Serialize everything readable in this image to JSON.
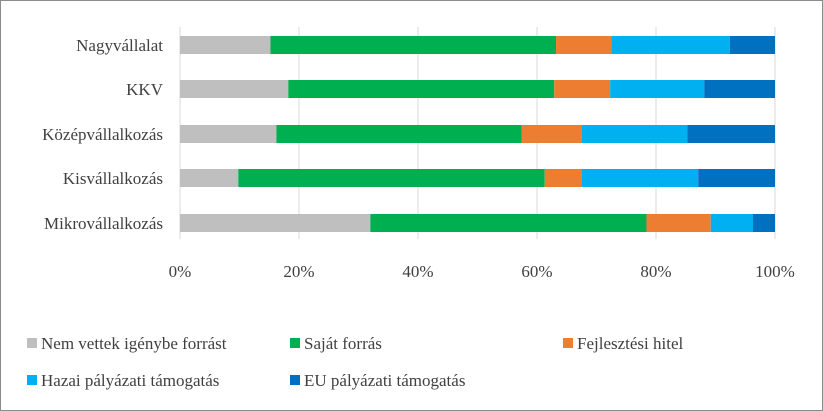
{
  "chart_data": {
    "type": "bar",
    "orientation": "horizontal",
    "stacked": "percent",
    "categories": [
      "Nagyvállalat",
      "KKV",
      "Középvállalkozás",
      "Kisvállalkozás",
      "Mikrovállalkozás"
    ],
    "xlim": [
      0,
      100
    ],
    "x_ticks": [
      "0%",
      "20%",
      "40%",
      "60%",
      "80%",
      "100%"
    ],
    "grid": true,
    "legend_position": "bottom",
    "series": [
      {
        "name": "Nem vettek igénybe forrást",
        "color": "#bfbfbf",
        "values": [
          15.2,
          18.2,
          16.2,
          9.8,
          32.0
        ]
      },
      {
        "name": "Saját forrás",
        "color": "#00b050",
        "values": [
          48.0,
          44.7,
          41.2,
          51.5,
          46.4
        ]
      },
      {
        "name": "Fejlesztési hitel",
        "color": "#ed7d31",
        "values": [
          9.3,
          9.4,
          10.1,
          6.2,
          10.8
        ]
      },
      {
        "name": "Hazai pályázati támogatás",
        "color": "#00b0f0",
        "values": [
          19.9,
          15.8,
          17.8,
          19.6,
          7.1
        ]
      },
      {
        "name": "EU pályázati támogatás",
        "color": "#0070c0",
        "values": [
          7.6,
          11.9,
          14.7,
          12.9,
          3.7
        ]
      }
    ]
  }
}
